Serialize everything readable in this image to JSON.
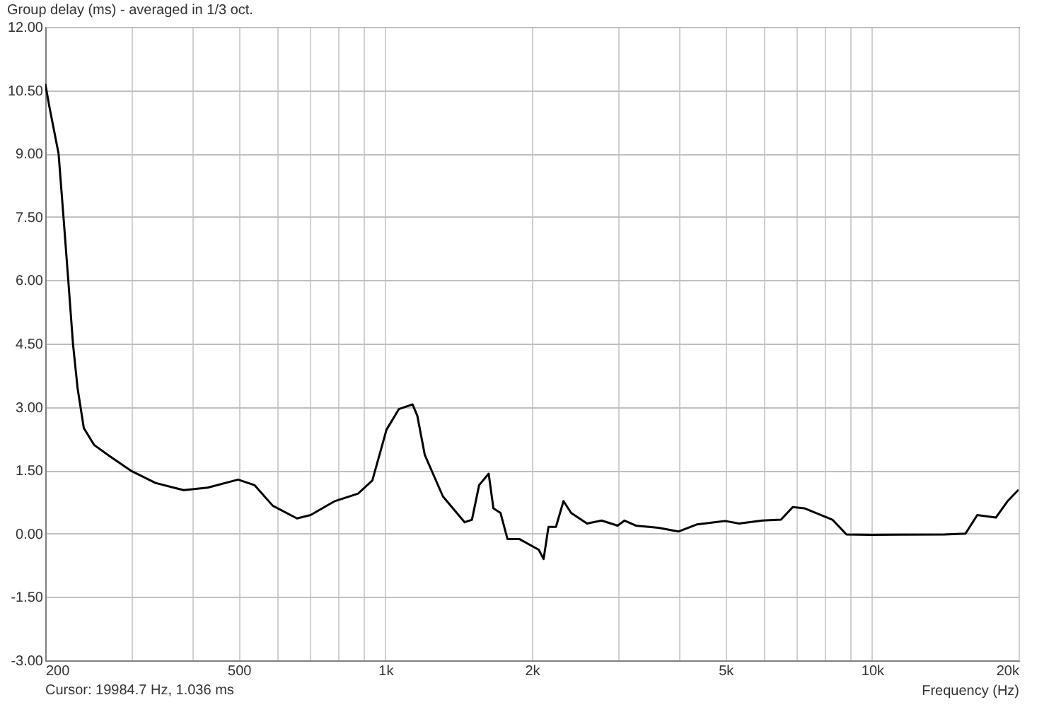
{
  "chart_data": {
    "type": "line",
    "title": "Group delay (ms) - averaged in 1/3 oct.",
    "xlabel": "Frequency (Hz)",
    "annotations": [
      "Cursor: 19984.7 Hz, 1.036 ms"
    ],
    "log": "x",
    "grid": true,
    "marker": "none",
    "line_style": "solid",
    "xlim": [
      200,
      20000
    ],
    "xticks": [
      {
        "value": 200,
        "label": "200"
      },
      {
        "value": 300,
        "label": null
      },
      {
        "value": 400,
        "label": null
      },
      {
        "value": 500,
        "label": "500"
      },
      {
        "value": 600,
        "label": null
      },
      {
        "value": 700,
        "label": null
      },
      {
        "value": 800,
        "label": null
      },
      {
        "value": 900,
        "label": null
      },
      {
        "value": 1000,
        "label": "1k"
      },
      {
        "value": 2000,
        "label": "2k"
      },
      {
        "value": 3000,
        "label": null
      },
      {
        "value": 4000,
        "label": null
      },
      {
        "value": 5000,
        "label": "5k"
      },
      {
        "value": 6000,
        "label": null
      },
      {
        "value": 7000,
        "label": null
      },
      {
        "value": 8000,
        "label": null
      },
      {
        "value": 9000,
        "label": null
      },
      {
        "value": 10000,
        "label": "10k"
      },
      {
        "value": 20000,
        "label": "20k"
      }
    ],
    "ylim": [
      -3,
      12
    ],
    "yticks": [
      {
        "value": -3,
        "label": "-3.00"
      },
      {
        "value": -1.5,
        "label": "-1.50"
      },
      {
        "value": 0,
        "label": "0.00"
      },
      {
        "value": 1.5,
        "label": "1.50"
      },
      {
        "value": 3,
        "label": "3.00"
      },
      {
        "value": 4.5,
        "label": "4.50"
      },
      {
        "value": 6,
        "label": "6.00"
      },
      {
        "value": 7.5,
        "label": "7.50"
      },
      {
        "value": 9,
        "label": "9.00"
      },
      {
        "value": 10.5,
        "label": "10.50"
      },
      {
        "value": 12,
        "label": "12.00"
      }
    ],
    "x": [
      200,
      204,
      213,
      218,
      223,
      228,
      233,
      240,
      252,
      270,
      301,
      337,
      385,
      431,
      498,
      538,
      587,
      658,
      702,
      787,
      879,
      940,
      1005,
      1066,
      1137,
      1163,
      1205,
      1313,
      1455,
      1506,
      1558,
      1630,
      1667,
      1724,
      1782,
      1887,
      2065,
      2114,
      2163,
      2241,
      2322,
      2408,
      2596,
      2782,
      3000,
      3100,
      3270,
      3640,
      4000,
      4370,
      4990,
      5330,
      5950,
      6500,
      6870,
      7260,
      8290,
      8860,
      9920,
      14100,
      15560,
      16450,
      17960,
      18990,
      20000
    ],
    "series": [
      {
        "color": "#000000",
        "values": [
          10.65,
          10.1,
          9.0,
          7.5,
          6.0,
          4.5,
          3.45,
          2.5,
          2.1,
          1.85,
          1.48,
          1.2,
          1.03,
          1.09,
          1.28,
          1.15,
          0.66,
          0.36,
          0.44,
          0.77,
          0.95,
          1.26,
          2.46,
          2.95,
          3.06,
          2.79,
          1.86,
          0.88,
          0.27,
          0.33,
          1.15,
          1.42,
          0.6,
          0.49,
          -0.13,
          -0.13,
          -0.38,
          -0.6,
          0.16,
          0.16,
          0.77,
          0.49,
          0.24,
          0.31,
          0.19,
          0.31,
          0.19,
          0.14,
          0.05,
          0.22,
          0.3,
          0.24,
          0.31,
          0.33,
          0.63,
          0.6,
          0.33,
          -0.02,
          -0.03,
          -0.02,
          0,
          0.44,
          0.38,
          0.77,
          1.04
        ]
      }
    ]
  }
}
